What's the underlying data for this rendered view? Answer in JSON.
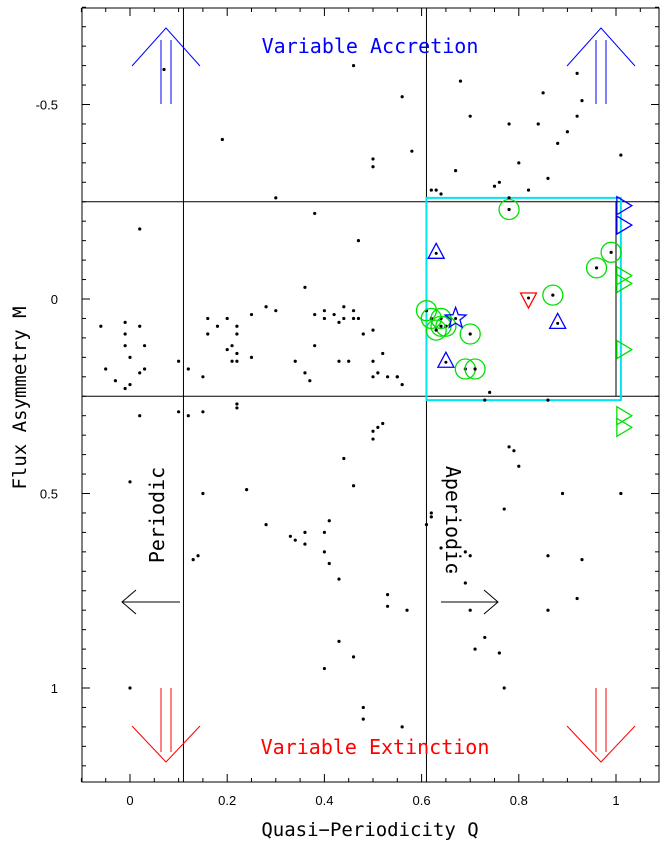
{
  "chart_data": {
    "type": "scatter",
    "xlabel": "Quasi−Periodicity Q",
    "ylabel": "Flux Asymmetry M",
    "xlim": [
      -0.1,
      1.1
    ],
    "ylim": [
      1.2,
      -0.75
    ],
    "y_axis_inverted": true,
    "x_ticks": [
      "0",
      "0.2",
      "0.4",
      "0.6",
      "0.8",
      "1"
    ],
    "y_ticks": [
      "-0.5",
      "0",
      "0.5",
      "1"
    ],
    "annotations": {
      "top": "Variable Accretion",
      "bottom": "Variable Extinction",
      "left": "Periodic",
      "right": "Aperiodic"
    },
    "colors": {
      "accretion": "#0000ff",
      "extinction": "#ff0000",
      "highlight": "#00e000",
      "box": "#00e5ee",
      "points": "#000000"
    },
    "reference_lines": {
      "vertical_q": [
        0.11,
        0.61
      ],
      "horizontal_m": [
        -0.25,
        0.25
      ]
    },
    "highlight_box": {
      "q": [
        0.61,
        1.01
      ],
      "m": [
        -0.26,
        0.26
      ]
    },
    "series": [
      {
        "marker": "dot",
        "points": [
          [
            0.07,
            -0.59
          ],
          [
            0.46,
            -0.6
          ],
          [
            0.19,
            -0.41
          ],
          [
            0.56,
            -0.52
          ],
          [
            0.62,
            -0.28
          ],
          [
            0.63,
            -0.28
          ],
          [
            0.64,
            -0.27
          ],
          [
            0.7,
            -0.47
          ],
          [
            0.75,
            -0.29
          ],
          [
            0.78,
            -0.45
          ],
          [
            0.8,
            -0.35
          ],
          [
            0.84,
            -0.45
          ],
          [
            0.88,
            -0.4
          ],
          [
            0.9,
            -0.43
          ],
          [
            0.92,
            -0.47
          ],
          [
            0.93,
            -0.51
          ],
          [
            0.58,
            -0.38
          ],
          [
            0.5,
            -0.34
          ],
          [
            0.5,
            -0.36
          ],
          [
            0.3,
            -0.26
          ],
          [
            0.68,
            -0.56
          ],
          [
            0.67,
            -0.33
          ],
          [
            0.76,
            -0.3
          ],
          [
            0.78,
            -0.26
          ],
          [
            0.82,
            -0.28
          ],
          [
            0.86,
            -0.31
          ],
          [
            0.92,
            -0.58
          ],
          [
            0.85,
            -0.53
          ],
          [
            1.01,
            -0.37
          ],
          [
            -0.05,
            0.18
          ],
          [
            -0.03,
            0.21
          ],
          [
            -0.01,
            0.23
          ],
          [
            0.0,
            0.22
          ],
          [
            0.02,
            0.19
          ],
          [
            -0.01,
            0.09
          ],
          [
            0.02,
            0.07
          ],
          [
            0.03,
            0.12
          ],
          [
            -0.06,
            0.07
          ],
          [
            -0.01,
            0.06
          ],
          [
            0.03,
            0.18
          ],
          [
            0.1,
            0.16
          ],
          [
            0.12,
            0.18
          ],
          [
            0.21,
            0.16
          ],
          [
            0.22,
            0.16
          ],
          [
            0.22,
            0.09
          ],
          [
            0.2,
            0.05
          ],
          [
            0.16,
            0.05
          ],
          [
            0.16,
            0.09
          ],
          [
            0.21,
            0.12
          ],
          [
            0.22,
            0.14
          ],
          [
            0.2,
            0.13
          ],
          [
            0.18,
            0.07
          ],
          [
            0.22,
            0.07
          ],
          [
            0.25,
            0.04
          ],
          [
            0.28,
            0.02
          ],
          [
            0.3,
            0.03
          ],
          [
            0.34,
            0.16
          ],
          [
            0.36,
            0.19
          ],
          [
            0.37,
            0.21
          ],
          [
            0.38,
            0.04
          ],
          [
            0.4,
            0.03
          ],
          [
            0.42,
            0.04
          ],
          [
            0.44,
            0.02
          ],
          [
            0.44,
            0.05
          ],
          [
            0.46,
            0.05
          ],
          [
            0.48,
            0.09
          ],
          [
            0.5,
            0.16
          ],
          [
            0.51,
            0.19
          ],
          [
            0.5,
            0.2
          ],
          [
            0.53,
            0.2
          ],
          [
            0.55,
            0.2
          ],
          [
            0.56,
            0.22
          ],
          [
            0.36,
            -0.03
          ],
          [
            0.43,
            0.06
          ],
          [
            0.46,
            0.03
          ],
          [
            0.4,
            0.05
          ],
          [
            0.47,
            -0.15
          ],
          [
            0.38,
            -0.22
          ],
          [
            0.38,
            0.12
          ],
          [
            0.43,
            0.16
          ],
          [
            0.45,
            0.16
          ],
          [
            0.47,
            0.05
          ],
          [
            0.5,
            0.08
          ],
          [
            0.52,
            0.14
          ],
          [
            0.55,
            0.2
          ],
          [
            -0.01,
            0.12
          ],
          [
            0.0,
            0.15
          ],
          [
            0.02,
            -0.18
          ],
          [
            0.25,
            0.15
          ],
          [
            0.15,
            0.2
          ],
          [
            0.22,
            0.27
          ],
          [
            0.02,
            0.3
          ],
          [
            0.15,
            0.29
          ],
          [
            0.1,
            0.29
          ],
          [
            0.12,
            0.3
          ],
          [
            0.22,
            0.28
          ],
          [
            0.73,
            0.26
          ],
          [
            0.86,
            0.26
          ],
          [
            0.5,
            0.34
          ],
          [
            0.5,
            0.36
          ],
          [
            0.51,
            0.33
          ],
          [
            0.52,
            0.32
          ],
          [
            0.44,
            0.41
          ],
          [
            0.46,
            0.48
          ],
          [
            0.41,
            0.57
          ],
          [
            0.36,
            0.6
          ],
          [
            0.34,
            0.62
          ],
          [
            0.33,
            0.61
          ],
          [
            0.36,
            0.63
          ],
          [
            0.4,
            0.6
          ],
          [
            0.4,
            0.65
          ],
          [
            0.41,
            0.68
          ],
          [
            0.43,
            0.72
          ],
          [
            0.28,
            0.58
          ],
          [
            0.24,
            0.49
          ],
          [
            0.15,
            0.5
          ],
          [
            0.14,
            0.66
          ],
          [
            0.13,
            0.67
          ],
          [
            0.0,
            0.47
          ],
          [
            0.0,
            1.0
          ],
          [
            0.53,
            0.76
          ],
          [
            0.53,
            0.79
          ],
          [
            0.57,
            0.8
          ],
          [
            0.43,
            0.88
          ],
          [
            0.46,
            0.92
          ],
          [
            0.4,
            0.95
          ],
          [
            0.48,
            1.05
          ],
          [
            0.48,
            1.08
          ],
          [
            0.56,
            1.1
          ],
          [
            0.61,
            0.58
          ],
          [
            0.62,
            0.56
          ],
          [
            0.64,
            0.64
          ],
          [
            0.66,
            0.7
          ],
          [
            0.69,
            0.65
          ],
          [
            0.7,
            0.8
          ],
          [
            0.71,
            0.9
          ],
          [
            0.73,
            0.87
          ],
          [
            0.76,
            0.91
          ],
          [
            0.77,
            1.0
          ],
          [
            0.77,
            0.54
          ],
          [
            0.78,
            0.38
          ],
          [
            0.79,
            0.39
          ],
          [
            0.8,
            0.43
          ],
          [
            0.86,
            0.66
          ],
          [
            0.89,
            0.5
          ],
          [
            0.86,
            0.8
          ],
          [
            0.92,
            0.77
          ],
          [
            0.93,
            0.67
          ],
          [
            1.01,
            0.5
          ],
          [
            0.74,
            0.24
          ],
          [
            0.69,
            0.73
          ],
          [
            0.62,
            0.55
          ],
          [
            0.7,
            0.66
          ]
        ]
      },
      {
        "marker": "green-circle",
        "points": [
          [
            0.78,
            -0.23
          ],
          [
            0.64,
            0.07
          ],
          [
            0.61,
            0.03
          ],
          [
            0.87,
            -0.01
          ],
          [
            0.96,
            -0.08
          ],
          [
            0.99,
            -0.12
          ],
          [
            0.62,
            0.05
          ],
          [
            0.64,
            0.05
          ],
          [
            0.65,
            0.07
          ],
          [
            0.63,
            0.08
          ],
          [
            0.7,
            0.09
          ],
          [
            0.69,
            0.18
          ],
          [
            0.71,
            0.18
          ]
        ]
      },
      {
        "marker": "blue-triangle-up",
        "points": [
          [
            0.63,
            -0.12
          ],
          [
            0.88,
            0.06
          ],
          [
            0.65,
            0.16
          ]
        ]
      },
      {
        "marker": "blue-star",
        "points": [
          [
            0.67,
            0.05
          ]
        ]
      },
      {
        "marker": "red-triangle-down",
        "points": [
          [
            0.82,
            0.0
          ]
        ]
      },
      {
        "marker": "blue-triangle-right",
        "points": [
          [
            1.01,
            -0.24
          ],
          [
            1.01,
            -0.19
          ]
        ]
      },
      {
        "marker": "green-triangle-right",
        "points": [
          [
            1.01,
            -0.06
          ],
          [
            1.01,
            -0.04
          ],
          [
            1.01,
            0.13
          ],
          [
            1.01,
            0.3
          ],
          [
            1.01,
            0.33
          ]
        ]
      }
    ]
  }
}
